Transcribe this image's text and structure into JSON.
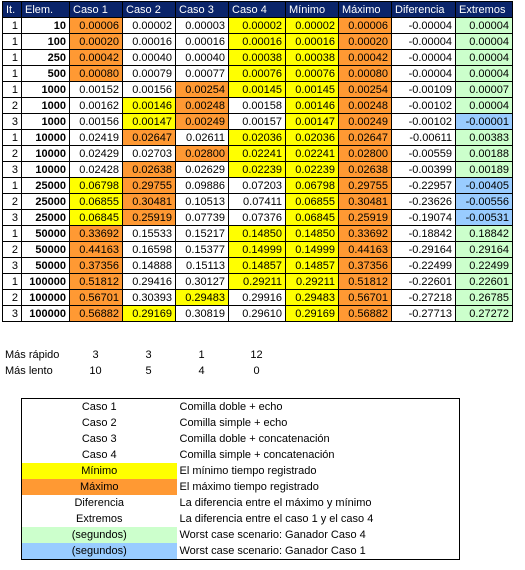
{
  "headers": [
    "It.",
    "Elem.",
    "Caso 1",
    "Caso 2",
    "Caso 3",
    "Caso 4",
    "Mínimo",
    "Máximo",
    "Diferencia",
    "Extremos"
  ],
  "rows": [
    {
      "it": "1",
      "elem": "10",
      "c1": "0.00006",
      "c2": "0.00002",
      "c3": "0.00003",
      "c4": "0.00002",
      "min": "0.00002",
      "max": "0.00006",
      "dif": "-0.00004",
      "ext": "0.00004",
      "hl": [
        "orange",
        "",
        "",
        "yellow",
        "yellow",
        "orange",
        "",
        "green"
      ]
    },
    {
      "it": "1",
      "elem": "100",
      "c1": "0.00020",
      "c2": "0.00016",
      "c3": "0.00016",
      "c4": "0.00016",
      "min": "0.00016",
      "max": "0.00020",
      "dif": "-0.00004",
      "ext": "0.00004",
      "hl": [
        "orange",
        "",
        "",
        "yellow",
        "yellow",
        "orange",
        "",
        "green"
      ]
    },
    {
      "it": "1",
      "elem": "250",
      "c1": "0.00042",
      "c2": "0.00040",
      "c3": "0.00040",
      "c4": "0.00038",
      "min": "0.00038",
      "max": "0.00042",
      "dif": "-0.00004",
      "ext": "0.00004",
      "hl": [
        "orange",
        "",
        "",
        "yellow",
        "yellow",
        "orange",
        "",
        "green"
      ]
    },
    {
      "it": "1",
      "elem": "500",
      "c1": "0.00080",
      "c2": "0.00079",
      "c3": "0.00077",
      "c4": "0.00076",
      "min": "0.00076",
      "max": "0.00080",
      "dif": "-0.00004",
      "ext": "0.00004",
      "hl": [
        "orange",
        "",
        "",
        "yellow",
        "yellow",
        "orange",
        "",
        "green"
      ]
    },
    {
      "it": "1",
      "elem": "1000",
      "c1": "0.00152",
      "c2": "0.00156",
      "c3": "0.00254",
      "c4": "0.00145",
      "min": "0.00145",
      "max": "0.00254",
      "dif": "-0.00109",
      "ext": "0.00007",
      "hl": [
        "",
        "",
        "orange",
        "yellow",
        "yellow",
        "orange",
        "",
        "green"
      ]
    },
    {
      "it": "2",
      "elem": "1000",
      "c1": "0.00162",
      "c2": "0.00146",
      "c3": "0.00248",
      "c4": "0.00158",
      "min": "0.00146",
      "max": "0.00248",
      "dif": "-0.00102",
      "ext": "0.00004",
      "hl": [
        "",
        "yellow",
        "orange",
        "",
        "yellow",
        "orange",
        "",
        "green"
      ]
    },
    {
      "it": "3",
      "elem": "1000",
      "c1": "0.00156",
      "c2": "0.00147",
      "c3": "0.00249",
      "c4": "0.00157",
      "min": "0.00147",
      "max": "0.00249",
      "dif": "-0.00102",
      "ext": "-0.00001",
      "hl": [
        "",
        "yellow",
        "orange",
        "",
        "yellow",
        "orange",
        "",
        "blue"
      ]
    },
    {
      "it": "1",
      "elem": "10000",
      "c1": "0.02419",
      "c2": "0.02647",
      "c3": "0.02611",
      "c4": "0.02036",
      "min": "0.02036",
      "max": "0.02647",
      "dif": "-0.00611",
      "ext": "0.00383",
      "hl": [
        "",
        "orange",
        "",
        "yellow",
        "yellow",
        "orange",
        "",
        "green"
      ]
    },
    {
      "it": "2",
      "elem": "10000",
      "c1": "0.02429",
      "c2": "0.02703",
      "c3": "0.02800",
      "c4": "0.02241",
      "min": "0.02241",
      "max": "0.02800",
      "dif": "-0.00559",
      "ext": "0.00188",
      "hl": [
        "",
        "",
        "orange",
        "yellow",
        "yellow",
        "orange",
        "",
        "green"
      ]
    },
    {
      "it": "3",
      "elem": "10000",
      "c1": "0.02428",
      "c2": "0.02638",
      "c3": "0.02629",
      "c4": "0.02239",
      "min": "0.02239",
      "max": "0.02638",
      "dif": "-0.00399",
      "ext": "0.00189",
      "hl": [
        "",
        "orange",
        "",
        "yellow",
        "yellow",
        "orange",
        "",
        "green"
      ]
    },
    {
      "it": "1",
      "elem": "25000",
      "c1": "0.06798",
      "c2": "0.29755",
      "c3": "0.09886",
      "c4": "0.07203",
      "min": "0.06798",
      "max": "0.29755",
      "dif": "-0.22957",
      "ext": "-0.00405",
      "hl": [
        "yellow",
        "orange",
        "",
        "",
        "yellow",
        "orange",
        "",
        "blue"
      ]
    },
    {
      "it": "2",
      "elem": "25000",
      "c1": "0.06855",
      "c2": "0.30481",
      "c3": "0.10513",
      "c4": "0.07411",
      "min": "0.06855",
      "max": "0.30481",
      "dif": "-0.23626",
      "ext": "-0.00556",
      "hl": [
        "yellow",
        "orange",
        "",
        "",
        "yellow",
        "orange",
        "",
        "blue"
      ]
    },
    {
      "it": "3",
      "elem": "25000",
      "c1": "0.06845",
      "c2": "0.25919",
      "c3": "0.07739",
      "c4": "0.07376",
      "min": "0.06845",
      "max": "0.25919",
      "dif": "-0.19074",
      "ext": "-0.00531",
      "hl": [
        "yellow",
        "orange",
        "",
        "",
        "yellow",
        "orange",
        "",
        "blue"
      ]
    },
    {
      "it": "1",
      "elem": "50000",
      "c1": "0.33692",
      "c2": "0.15533",
      "c3": "0.15217",
      "c4": "0.14850",
      "min": "0.14850",
      "max": "0.33692",
      "dif": "-0.18842",
      "ext": "0.18842",
      "hl": [
        "orange",
        "",
        "",
        "yellow",
        "yellow",
        "orange",
        "",
        "green"
      ]
    },
    {
      "it": "2",
      "elem": "50000",
      "c1": "0.44163",
      "c2": "0.16598",
      "c3": "0.15377",
      "c4": "0.14999",
      "min": "0.14999",
      "max": "0.44163",
      "dif": "-0.29164",
      "ext": "0.29164",
      "hl": [
        "orange",
        "",
        "",
        "yellow",
        "yellow",
        "orange",
        "",
        "green"
      ]
    },
    {
      "it": "3",
      "elem": "50000",
      "c1": "0.37356",
      "c2": "0.14888",
      "c3": "0.15113",
      "c4": "0.14857",
      "min": "0.14857",
      "max": "0.37356",
      "dif": "-0.22499",
      "ext": "0.22499",
      "hl": [
        "orange",
        "",
        "",
        "yellow",
        "yellow",
        "orange",
        "",
        "green"
      ]
    },
    {
      "it": "1",
      "elem": "100000",
      "c1": "0.51812",
      "c2": "0.29416",
      "c3": "0.30127",
      "c4": "0.29211",
      "min": "0.29211",
      "max": "0.51812",
      "dif": "-0.22601",
      "ext": "0.22601",
      "hl": [
        "orange",
        "",
        "",
        "yellow",
        "yellow",
        "orange",
        "",
        "green"
      ]
    },
    {
      "it": "2",
      "elem": "100000",
      "c1": "0.56701",
      "c2": "0.30393",
      "c3": "0.29483",
      "c4": "0.29916",
      "min": "0.29483",
      "max": "0.56701",
      "dif": "-0.27218",
      "ext": "0.26785",
      "hl": [
        "orange",
        "",
        "yellow",
        "",
        "yellow",
        "orange",
        "",
        "green"
      ]
    },
    {
      "it": "3",
      "elem": "100000",
      "c1": "0.56882",
      "c2": "0.29169",
      "c3": "0.30819",
      "c4": "0.29610",
      "min": "0.29169",
      "max": "0.56882",
      "dif": "-0.27713",
      "ext": "0.27272",
      "hl": [
        "orange",
        "yellow",
        "",
        "",
        "yellow",
        "orange",
        "",
        "green"
      ]
    }
  ],
  "summary": [
    {
      "label": "Más rápido",
      "c1": "3",
      "c2": "3",
      "c3": "1",
      "c4": "12"
    },
    {
      "label": "Más lento",
      "c1": "10",
      "c2": "5",
      "c3": "4",
      "c4": "0"
    }
  ],
  "legend": [
    {
      "name": "Caso 1",
      "desc": "Comilla doble + echo",
      "color": ""
    },
    {
      "name": "Caso 2",
      "desc": "Comilla simple + echo",
      "color": ""
    },
    {
      "name": "Caso 3",
      "desc": "Comilla doble + concatenación",
      "color": ""
    },
    {
      "name": "Caso 4",
      "desc": "Comilla simple + concatenación",
      "color": ""
    },
    {
      "name": "Mínimo",
      "desc": "El mínimo tiempo registrado",
      "color": "yellow"
    },
    {
      "name": "Máximo",
      "desc": "El máximo tiempo registrado",
      "color": "orange"
    },
    {
      "name": "Diferencia",
      "desc": "La diferencia entre el máximo y mínimo",
      "color": ""
    },
    {
      "name": "Extremos",
      "desc": "La diferencia entre el caso 1 y el caso 4",
      "color": ""
    },
    {
      "name": "(segundos)",
      "desc": "Worst case scenario: Ganador Caso 4",
      "color": "green"
    },
    {
      "name": "(segundos)",
      "desc": "Worst case scenario: Ganador Caso 1",
      "color": "blue"
    }
  ],
  "colors": {
    "header_bg": "#0a246a",
    "yellow": "#ffff00",
    "orange": "#ff9933",
    "green": "#ccffcc",
    "blue": "#99ccff"
  }
}
